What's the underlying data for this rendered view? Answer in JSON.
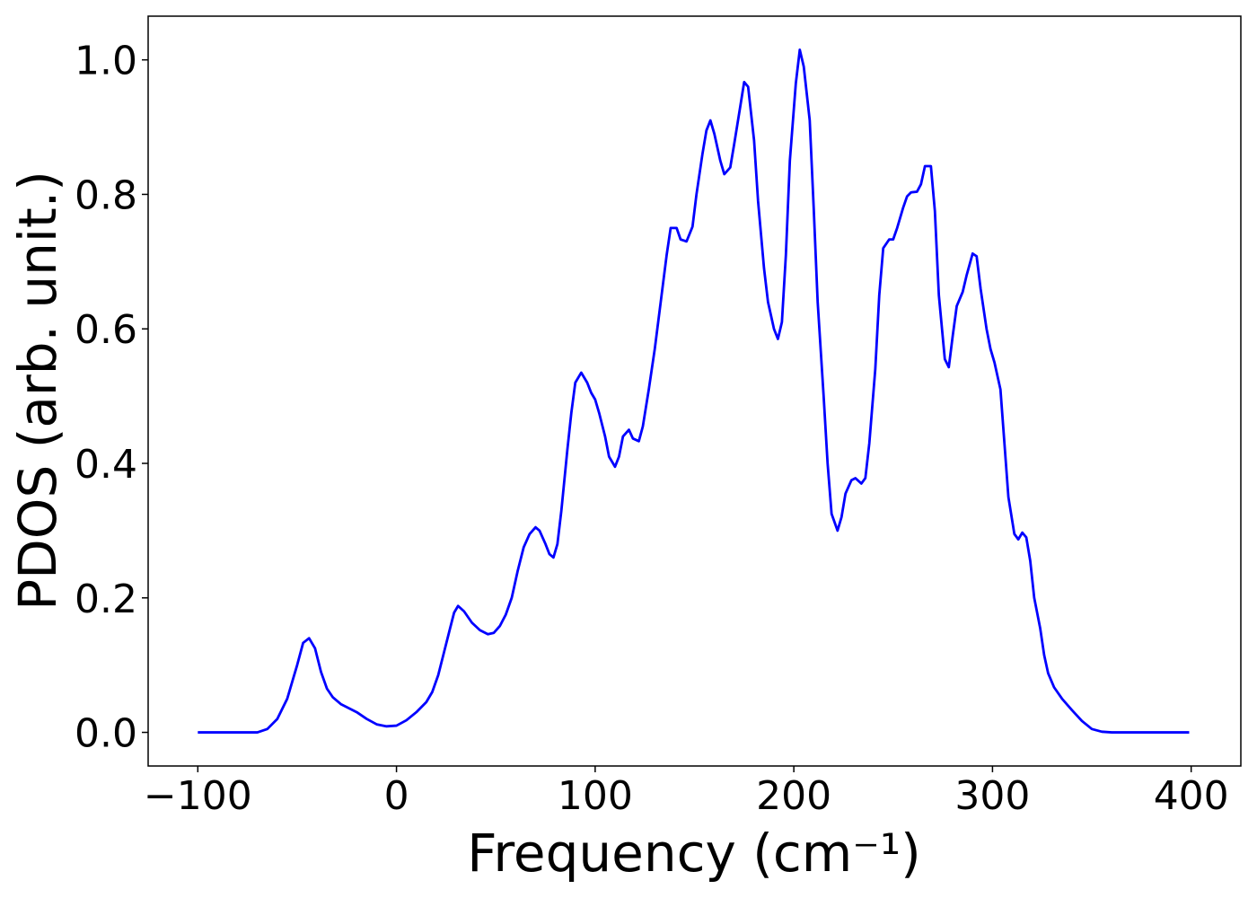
{
  "chart_data": {
    "type": "line",
    "xlabel": "Frequency (cm⁻¹)",
    "ylabel": "PDOS (arb. unit.)",
    "color": "#0000ff",
    "xlim": [
      -125,
      425
    ],
    "ylim": [
      -0.05,
      1.065
    ],
    "xticks": [
      {
        "value": -100,
        "label": "−100"
      },
      0,
      100,
      200,
      300,
      400
    ],
    "yticks": [
      {
        "value": 0,
        "label": "0.0"
      },
      0.2,
      0.4,
      0.6,
      0.8,
      {
        "value": 1,
        "label": "1.0"
      }
    ],
    "x": [
      -100,
      -70,
      -65,
      -60,
      -55,
      -50,
      -47,
      -44,
      -41,
      -38,
      -35,
      -32,
      -28,
      -20,
      -15,
      -10,
      -5,
      0,
      5,
      10,
      15,
      18,
      21,
      24,
      27,
      29,
      31,
      34,
      38,
      42,
      46,
      49,
      52,
      55,
      58,
      61,
      64,
      67,
      70,
      72,
      75,
      77,
      79,
      81,
      83,
      86,
      88,
      90,
      93,
      96,
      98,
      100,
      102,
      105,
      107,
      110,
      112,
      114,
      117,
      119,
      122,
      124,
      127,
      130,
      133,
      136,
      138,
      141,
      143,
      146,
      149,
      151,
      154,
      156,
      158,
      160,
      163,
      165,
      168,
      170,
      173,
      175,
      177,
      180,
      182,
      185,
      187,
      190,
      192,
      194,
      196,
      198,
      201,
      203,
      205,
      208,
      210,
      212,
      215,
      217,
      219,
      222,
      224,
      226,
      229,
      231,
      234,
      236,
      238,
      241,
      243,
      245,
      248,
      250,
      252,
      255,
      257,
      259,
      262,
      264,
      266,
      269,
      271,
      273,
      276,
      278,
      280,
      282,
      285,
      287,
      290,
      292,
      294,
      297,
      299,
      301,
      304,
      306,
      308,
      311,
      313,
      315,
      317,
      319,
      321,
      324,
      326,
      328,
      331,
      335,
      340,
      345,
      350,
      355,
      360,
      399
    ],
    "values": [
      0,
      0,
      0.005,
      0.02,
      0.05,
      0.1,
      0.133,
      0.14,
      0.125,
      0.09,
      0.065,
      0.052,
      0.042,
      0.03,
      0.02,
      0.012,
      0.009,
      0.01,
      0.018,
      0.03,
      0.045,
      0.06,
      0.085,
      0.12,
      0.155,
      0.178,
      0.188,
      0.18,
      0.163,
      0.152,
      0.146,
      0.148,
      0.158,
      0.175,
      0.2,
      0.24,
      0.275,
      0.295,
      0.305,
      0.3,
      0.28,
      0.265,
      0.26,
      0.28,
      0.33,
      0.42,
      0.475,
      0.52,
      0.535,
      0.52,
      0.505,
      0.495,
      0.475,
      0.44,
      0.41,
      0.395,
      0.41,
      0.44,
      0.45,
      0.437,
      0.433,
      0.455,
      0.51,
      0.57,
      0.64,
      0.71,
      0.75,
      0.75,
      0.733,
      0.73,
      0.752,
      0.8,
      0.86,
      0.895,
      0.91,
      0.89,
      0.85,
      0.83,
      0.84,
      0.875,
      0.93,
      0.967,
      0.96,
      0.88,
      0.79,
      0.69,
      0.64,
      0.6,
      0.585,
      0.61,
      0.71,
      0.85,
      0.965,
      1.015,
      0.99,
      0.91,
      0.78,
      0.64,
      0.5,
      0.4,
      0.325,
      0.3,
      0.32,
      0.355,
      0.375,
      0.378,
      0.37,
      0.378,
      0.43,
      0.54,
      0.65,
      0.72,
      0.733,
      0.733,
      0.75,
      0.78,
      0.797,
      0.803,
      0.804,
      0.815,
      0.842,
      0.842,
      0.775,
      0.65,
      0.555,
      0.543,
      0.59,
      0.634,
      0.655,
      0.68,
      0.712,
      0.708,
      0.66,
      0.6,
      0.57,
      0.55,
      0.51,
      0.43,
      0.35,
      0.295,
      0.287,
      0.297,
      0.29,
      0.255,
      0.2,
      0.155,
      0.115,
      0.088,
      0.067,
      0.05,
      0.033,
      0.017,
      0.005,
      0.001,
      0,
      0
    ]
  }
}
